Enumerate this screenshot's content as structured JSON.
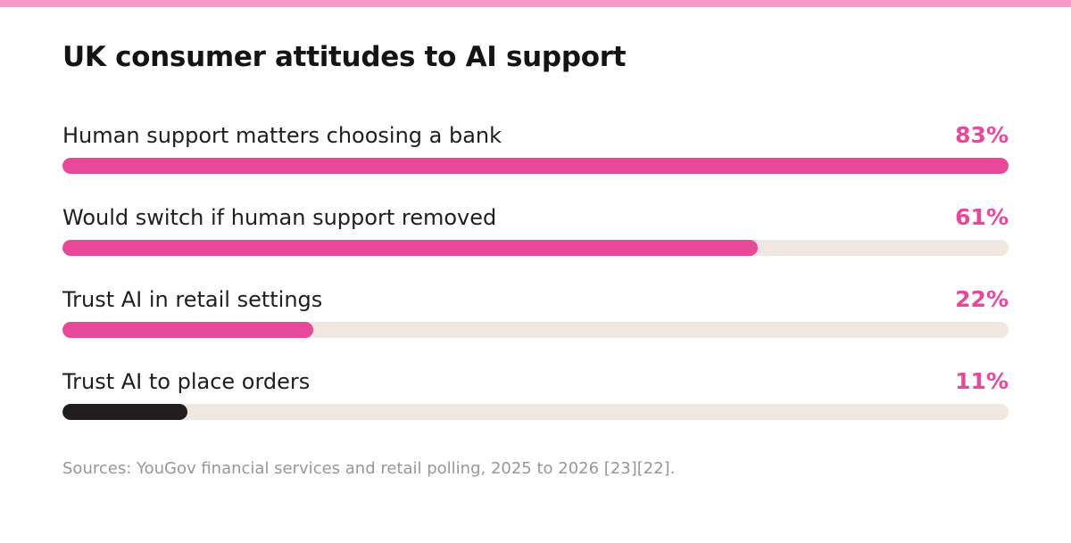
{
  "colors": {
    "accent": "#e8489a",
    "stripe": "#f59ac8",
    "track": "#f1e7e1",
    "dark_bar": "#211d1f",
    "title": "#161314",
    "source": "#9a9597"
  },
  "chart_data": {
    "type": "bar",
    "orientation": "horizontal",
    "title": "UK consumer attitudes to AI support",
    "categories": [
      "Human support matters choosing a bank",
      "Would switch if human support removed",
      "Trust AI in retail settings",
      "Trust AI to place orders"
    ],
    "values": [
      83,
      61,
      22,
      11
    ],
    "value_labels": [
      "83%",
      "61%",
      "22%",
      "11%"
    ],
    "bar_colors": [
      "#e8489a",
      "#e8489a",
      "#e8489a",
      "#211d1f"
    ],
    "value_label_color": "#e8489a",
    "xlim": [
      0,
      83
    ],
    "grid": false,
    "source": "Sources: YouGov financial services and retail polling, 2025 to 2026 [23][22]."
  }
}
